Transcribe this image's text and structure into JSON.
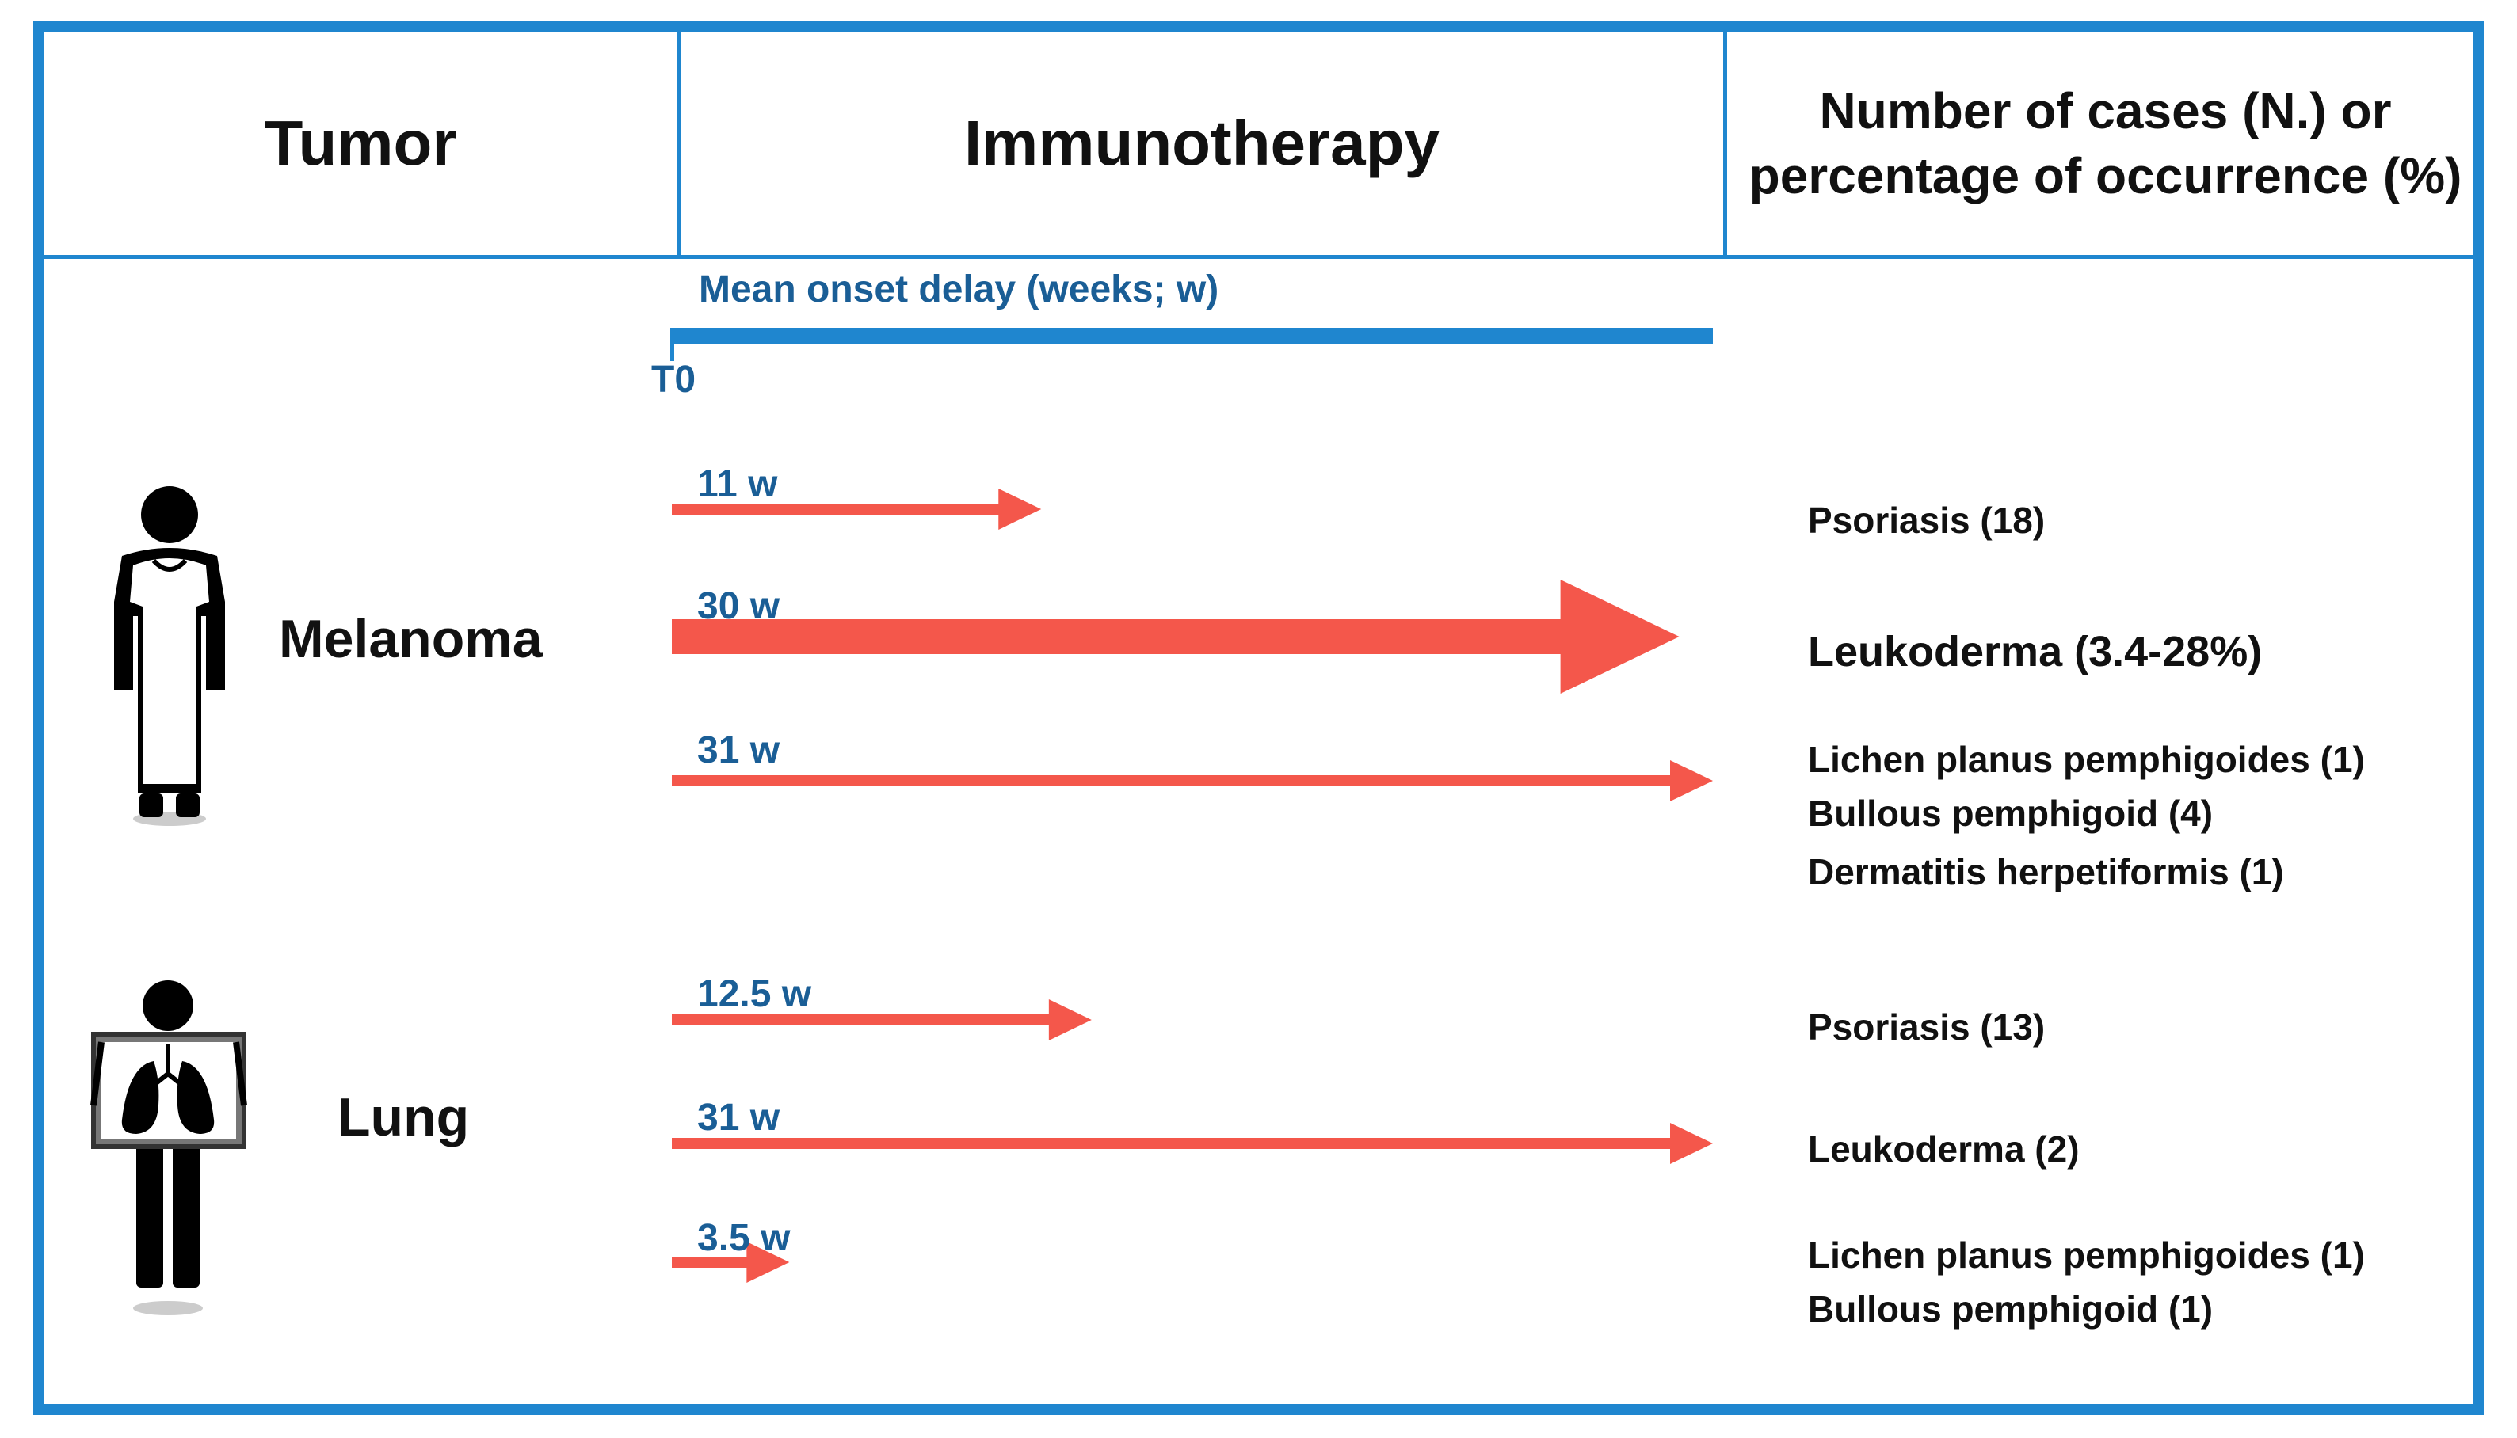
{
  "header": {
    "tumor": "Tumor",
    "immunotherapy": "Immunotherapy",
    "cases_line1": "Number of cases (N.) or",
    "cases_line2": "percentage of occurrence (%)"
  },
  "timeline": {
    "title": "Mean onset delay  (weeks;  w)",
    "origin_label": "T0",
    "max_weeks": 31
  },
  "colors": {
    "border": "#1f86cf",
    "arrow": "#f4574b",
    "week_label": "#1a5e96",
    "text": "#111111"
  },
  "tumors": [
    {
      "name": "Melanoma",
      "icon": "patient-gown-icon",
      "arrows": [
        {
          "label": "11 w",
          "weeks": 11,
          "style": "thin",
          "effects": [
            "Psoriasis  (18)"
          ]
        },
        {
          "label": "30 w",
          "weeks": 30,
          "style": "thick",
          "effects": [
            "Leukoderma (3.4-28%)"
          ]
        },
        {
          "label": "31 w",
          "weeks": 31,
          "style": "thin",
          "effects": [
            "Lichen  planus  pemphigoides  (1)",
            "Bullous pemphigoid (4)",
            "Dermatitis  herpetiformis  (1)"
          ]
        }
      ]
    },
    {
      "name": "Lung",
      "icon": "patient-xray-lungs-icon",
      "arrows": [
        {
          "label": "12.5  w",
          "weeks": 12.5,
          "style": "thin",
          "effects": [
            "Psoriasis  (13)"
          ]
        },
        {
          "label": "31  w",
          "weeks": 31,
          "style": "thin",
          "effects": [
            "Leukoderma  (2)"
          ]
        },
        {
          "label": "3.5  w",
          "weeks": 3.5,
          "style": "thin",
          "effects": [
            "Lichen  planus  pemphigoides  (1)",
            "Bullous pemphigoid (1)"
          ]
        }
      ]
    }
  ]
}
